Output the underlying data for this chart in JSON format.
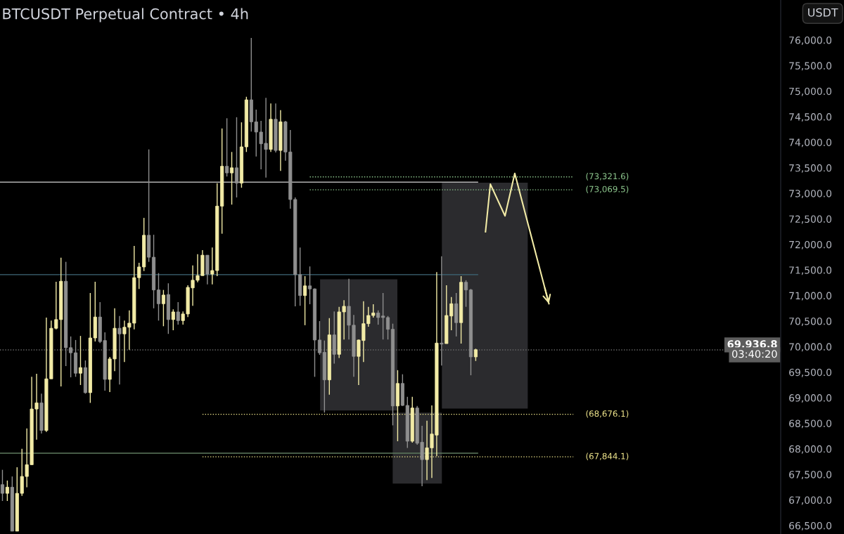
{
  "chart_data": {
    "type": "candlestick",
    "title": "BTCUSDT Perpetual Contract • 4h",
    "ylabel": "USDT",
    "categories": [
      null,
      null,
      null,
      null,
      null,
      null,
      null,
      null,
      null,
      null,
      null,
      null,
      null,
      null,
      null,
      null,
      null,
      null,
      null,
      null,
      null,
      null,
      null,
      null,
      null,
      null,
      null,
      null,
      null,
      null,
      null,
      null,
      null,
      null,
      null,
      null,
      null,
      null,
      null,
      null,
      null,
      null,
      null,
      null,
      null,
      null,
      null,
      null,
      null,
      null,
      null,
      null,
      null,
      null,
      null,
      null,
      null,
      null,
      null,
      null,
      null,
      null,
      null,
      null,
      null,
      null,
      null,
      null,
      null,
      null,
      null,
      null,
      null,
      null,
      null,
      null,
      null,
      null,
      null,
      null,
      null,
      null,
      null,
      null,
      null,
      null,
      null,
      null,
      null,
      null,
      null,
      null,
      null,
      null,
      null,
      null,
      null,
      null,
      null,
      null,
      null,
      null,
      null,
      null,
      null,
      null,
      null,
      null,
      null,
      null,
      null,
      null,
      null,
      null,
      null,
      null,
      null,
      null,
      null,
      null,
      null,
      null,
      null,
      null,
      null,
      null,
      null,
      null,
      null,
      null,
      null,
      null,
      null,
      null,
      null,
      null,
      null,
      null,
      null,
      null,
      null,
      null,
      null,
      null,
      null,
      null,
      null,
      null,
      null,
      null,
      null,
      null,
      null,
      null,
      null,
      null,
      null,
      null,
      null,
      null
    ],
    "ohlc": [
      [
        67300,
        67590,
        66980,
        67130
      ],
      [
        67130,
        67380,
        66980,
        67250
      ],
      [
        67250,
        67460,
        66390,
        66390
      ],
      [
        66390,
        67640,
        66390,
        67130
      ],
      [
        67130,
        68000,
        67080,
        67460
      ],
      [
        67460,
        68400,
        67250,
        67690
      ],
      [
        67690,
        69410,
        67690,
        68780
      ],
      [
        68780,
        69470,
        68180,
        68900
      ],
      [
        68900,
        69080,
        68300,
        68360
      ],
      [
        68360,
        70570,
        68330,
        69370
      ],
      [
        69370,
        70510,
        69370,
        70360
      ],
      [
        70360,
        71270,
        70340,
        70530
      ],
      [
        70530,
        71740,
        69220,
        71280
      ],
      [
        71280,
        71660,
        69620,
        69980
      ],
      [
        69980,
        70200,
        69400,
        69880
      ],
      [
        69880,
        70130,
        69410,
        69480
      ],
      [
        69480,
        70210,
        69250,
        69590
      ],
      [
        69590,
        69730,
        69080,
        69100
      ],
      [
        69100,
        71050,
        68900,
        70170
      ],
      [
        70170,
        71270,
        70100,
        70580
      ],
      [
        70580,
        70870,
        70070,
        70100
      ],
      [
        70120,
        70280,
        69140,
        69360
      ],
      [
        69360,
        69800,
        69110,
        69760
      ],
      [
        69760,
        70750,
        69520,
        70360
      ],
      [
        70360,
        70600,
        69260,
        70250
      ],
      [
        70250,
        70510,
        69700,
        70380
      ],
      [
        70380,
        70710,
        69940,
        70460
      ],
      [
        70460,
        71970,
        70340,
        71350
      ],
      [
        71350,
        71640,
        71130,
        71560
      ],
      [
        71560,
        72520,
        71480,
        72180
      ],
      [
        72180,
        73860,
        71660,
        71750
      ],
      [
        71750,
        72190,
        70750,
        71110
      ],
      [
        71110,
        71440,
        70510,
        70840
      ],
      [
        70840,
        71110,
        70400,
        71010
      ],
      [
        71020,
        71240,
        70250,
        70530
      ],
      [
        70530,
        70730,
        70320,
        70680
      ],
      [
        70680,
        70870,
        70430,
        70510
      ],
      [
        70510,
        70690,
        70430,
        70640
      ],
      [
        70640,
        71200,
        70580,
        71160
      ],
      [
        71150,
        71590,
        70800,
        71300
      ],
      [
        71300,
        71810,
        71260,
        71390
      ],
      [
        71390,
        71890,
        71390,
        71790
      ],
      [
        71790,
        71790,
        71220,
        71420
      ],
      [
        71420,
        71940,
        71220,
        71490
      ],
      [
        71490,
        73200,
        71380,
        72750
      ],
      [
        72750,
        74270,
        72210,
        73530
      ],
      [
        73530,
        74470,
        73330,
        73400
      ],
      [
        73400,
        73810,
        72780,
        73500
      ],
      [
        73500,
        74490,
        72920,
        73200
      ],
      [
        73200,
        74390,
        73110,
        73910
      ],
      [
        73910,
        74890,
        73810,
        74830
      ],
      [
        74830,
        76040,
        74210,
        74400
      ],
      [
        74400,
        74640,
        73720,
        74200
      ],
      [
        74200,
        74420,
        73470,
        73970
      ],
      [
        73980,
        74870,
        73310,
        73860
      ],
      [
        73860,
        74760,
        73810,
        74450
      ],
      [
        74450,
        74760,
        73800,
        73840
      ],
      [
        73840,
        74630,
        73440,
        74400
      ],
      [
        74400,
        74420,
        73640,
        73810
      ],
      [
        73810,
        74240,
        72700,
        72880
      ],
      [
        72880,
        72920,
        70790,
        71410
      ],
      [
        71410,
        71940,
        70800,
        71000
      ],
      [
        71000,
        71380,
        70420,
        71190
      ],
      [
        71190,
        71570,
        70830,
        71130
      ],
      [
        71130,
        71140,
        69410,
        70130
      ],
      [
        70130,
        70500,
        69840,
        69880
      ],
      [
        69890,
        70120,
        68710,
        69350
      ],
      [
        69350,
        70560,
        69060,
        70230
      ],
      [
        70230,
        70690,
        69670,
        69850
      ],
      [
        69850,
        70780,
        69780,
        70680
      ],
      [
        70680,
        70910,
        70140,
        70790
      ],
      [
        70790,
        71330,
        70140,
        70420
      ],
      [
        70420,
        70620,
        69410,
        69810
      ],
      [
        69810,
        70140,
        69250,
        70130
      ],
      [
        70120,
        70890,
        69700,
        70450
      ],
      [
        70450,
        70780,
        70390,
        70610
      ],
      [
        70610,
        70830,
        70570,
        70660
      ],
      [
        70660,
        70710,
        70430,
        70570
      ],
      [
        70600,
        71050,
        70140,
        70570
      ],
      [
        70570,
        70600,
        70140,
        70340
      ],
      [
        70340,
        70450,
        68460,
        68840
      ],
      [
        68840,
        69540,
        68150,
        69280
      ],
      [
        69280,
        69460,
        68840,
        68850
      ],
      [
        68850,
        69020,
        68020,
        68150
      ],
      [
        68150,
        69020,
        68120,
        68800
      ],
      [
        68800,
        68840,
        68080,
        68110
      ],
      [
        68130,
        68450,
        67270,
        67790
      ],
      [
        67790,
        68550,
        67390,
        68020
      ],
      [
        68020,
        68850,
        67430,
        68290
      ],
      [
        68270,
        71460,
        67860,
        70070
      ],
      [
        70070,
        71770,
        69630,
        70050
      ],
      [
        70060,
        71200,
        70060,
        70610
      ],
      [
        70600,
        70970,
        70320,
        70840
      ],
      [
        70840,
        71050,
        70200,
        70470
      ],
      [
        70470,
        71380,
        70060,
        71260
      ],
      [
        71260,
        71300,
        70780,
        71110
      ],
      [
        71110,
        71130,
        69440,
        69800
      ],
      [
        69800,
        69960,
        69720,
        69940
      ],
      null,
      null,
      null,
      null,
      null,
      null,
      null,
      null,
      null,
      null,
      null,
      null,
      null,
      null,
      null,
      null,
      null,
      null,
      null,
      null,
      null,
      null,
      null,
      null,
      null,
      null,
      null,
      null,
      null,
      null,
      null,
      null,
      null,
      null,
      null,
      null,
      null,
      null,
      null,
      null,
      null,
      null,
      null,
      null,
      null,
      null,
      null,
      null,
      null,
      null,
      null,
      null,
      null,
      null,
      null,
      null,
      null,
      null,
      null,
      null,
      null,
      null
    ],
    "colors": [
      "#8f8f8f",
      "#f2eba6",
      "#8f8f8f",
      "#f2eba6",
      "#f2eba6",
      "#f2eba6",
      "#f2eba6",
      "#f2eba6",
      "#8f8f8f",
      "#f2eba6",
      "#f2eba6",
      "#f2eba6",
      "#f2eba6",
      "#8f8f8f",
      "#8f8f8f",
      "#8f8f8f",
      "#f2eba6",
      "#8f8f8f",
      "#f2eba6",
      "#f2eba6",
      "#8f8f8f",
      "#8f8f8f",
      "#f2eba6",
      "#f2eba6",
      "#8f8f8f",
      "#f2eba6",
      "#f2eba6",
      "#f2eba6",
      "#f2eba6",
      "#f2eba6",
      "#8f8f8f",
      "#8f8f8f",
      "#8f8f8f",
      "#f2eba6",
      "#8f8f8f",
      "#f2eba6",
      "#8f8f8f",
      "#f2eba6",
      "#f2eba6",
      "#f2eba6",
      "#f2eba6",
      "#f2eba6",
      "#8f8f8f",
      "#f2eba6",
      "#f2eba6",
      "#f2eba6",
      "#8f8f8f",
      "#f2eba6",
      "#8f8f8f",
      "#f2eba6",
      "#f2eba6",
      "#8f8f8f",
      "#8f8f8f",
      "#8f8f8f",
      "#8f8f8f",
      "#f2eba6",
      "#8f8f8f",
      "#f2eba6",
      "#8f8f8f",
      "#8f8f8f",
      "#8f8f8f",
      "#8f8f8f",
      "#f2eba6",
      "#8f8f8f",
      "#8f8f8f",
      "#8f8f8f",
      "#8f8f8f",
      "#f2eba6",
      "#8f8f8f",
      "#f2eba6",
      "#f2eba6",
      "#8f8f8f",
      "#8f8f8f",
      "#f2eba6",
      "#f2eba6",
      "#f2eba6",
      "#f2eba6",
      "#8f8f8f",
      "#8f8f8f",
      "#8f8f8f",
      "#8f8f8f",
      "#f2eba6",
      "#8f8f8f",
      "#8f8f8f",
      "#f2eba6",
      "#8f8f8f",
      "#8f8f8f",
      "#f2eba6",
      "#f2eba6",
      "#f2eba6",
      "#8f8f8f",
      "#f2eba6",
      "#f2eba6",
      "#8f8f8f",
      "#f2eba6",
      "#8f8f8f",
      "#8f8f8f",
      "#f2eba6",
      null,
      null,
      null,
      null,
      null,
      null,
      null,
      null,
      null,
      null,
      null,
      null,
      null,
      null,
      null,
      null,
      null,
      null,
      null,
      null,
      null,
      null,
      null,
      null,
      null,
      null,
      null,
      null,
      null,
      null,
      null,
      null,
      null,
      null,
      null,
      null,
      null,
      null,
      null,
      null,
      null,
      null,
      null,
      null,
      null,
      null,
      null,
      null,
      null,
      null,
      null,
      null,
      null,
      null,
      null,
      null,
      null,
      null,
      null,
      null,
      null,
      null
    ],
    "series": [
      {
        "type": "line",
        "color": "#f2eba6",
        "values": [
          null,
          null,
          null,
          null,
          null,
          null,
          null,
          null,
          null,
          null,
          null,
          null,
          null,
          null,
          null,
          null,
          null,
          null,
          null,
          null,
          null,
          null,
          null,
          null,
          null,
          null,
          null,
          null,
          null,
          null,
          null,
          null,
          null,
          null,
          null,
          null,
          null,
          null,
          null,
          null,
          null,
          null,
          null,
          null,
          null,
          null,
          null,
          null,
          null,
          null,
          null,
          null,
          null,
          null,
          null,
          null,
          null,
          null,
          null,
          null,
          null,
          null,
          null,
          null,
          null,
          null,
          null,
          null,
          null,
          null,
          null,
          null,
          null,
          null,
          null,
          null,
          null,
          null,
          null,
          null,
          null,
          null,
          null,
          null,
          null,
          null,
          null,
          null,
          null,
          null,
          null,
          null,
          null,
          null,
          null,
          null,
          null,
          null,
          null,
          72250,
          73180,
          null,
          null,
          72560,
          null,
          73390,
          null,
          null,
          null,
          null,
          null,
          null,
          70840,
          null,
          null,
          null,
          null,
          null,
          null,
          null,
          null,
          null,
          null,
          null,
          null,
          null,
          null,
          null,
          null,
          null,
          null,
          null,
          null,
          null,
          null,
          null,
          null,
          null,
          null,
          null,
          null,
          null,
          null,
          null,
          null,
          null,
          null,
          null,
          null,
          null,
          null,
          null,
          null,
          null,
          null,
          null,
          null,
          null,
          null,
          null
        ]
      }
    ],
    "bands": [
      {
        "axis": "y",
        "from": 68750,
        "to": 71320,
        "color": "#2b2b2e"
      },
      {
        "axis": "y",
        "from": 67320,
        "to": 68710,
        "color": "#2b2b2e"
      },
      {
        "axis": "y",
        "from": 68790,
        "to": 73210,
        "color": "#2b2b2e"
      }
    ],
    "ref_lines": [
      {
        "axis": "y",
        "value": 71410,
        "color": "#3f6878",
        "line_style": "solid"
      },
      {
        "axis": "y",
        "value": 67915,
        "color": "#5e7a5e",
        "line_style": "solid"
      },
      {
        "axis": "y",
        "value": 73220,
        "color": "#b0b0b0",
        "line_style": "solid"
      },
      {
        "axis": "y",
        "value": 73321.6,
        "label": "(73,321.6)",
        "color": "#8fc98f",
        "line_style": "dotted"
      },
      {
        "axis": "y",
        "value": 73069.5,
        "label": "(73,069.5)",
        "color": "#8fc98f",
        "line_style": "dotted"
      },
      {
        "axis": "y",
        "value": 68676.1,
        "label": "(68,676.1)",
        "color": "#f0e68c",
        "line_style": "dotted"
      },
      {
        "axis": "y",
        "value": 67844.1,
        "label": "(67,844.1)",
        "color": "#f0e68c",
        "line_style": "dotted"
      },
      {
        "axis": "y",
        "value": 69936.8,
        "label": "69,936.8",
        "color": "#6b6b6b",
        "line_style": "dotted"
      }
    ],
    "annotations": [
      "03:40:20"
    ],
    "ylim": [
      66334,
      76784
    ],
    "yticks": [
      {
        "value": 66500,
        "label": "66,500.0"
      },
      {
        "value": 67000,
        "label": "67,000.0"
      },
      {
        "value": 67500,
        "label": "67,500.0"
      },
      {
        "value": 68000,
        "label": "68,000.0"
      },
      {
        "value": 68500,
        "label": "68,500.0"
      },
      {
        "value": 69000,
        "label": "69,000.0"
      },
      {
        "value": 69500,
        "label": "69,500.0"
      },
      {
        "value": 70000,
        "label": "70,000.0"
      },
      {
        "value": 70500,
        "label": "70,500.0"
      },
      {
        "value": 71000,
        "label": "71,000.0"
      },
      {
        "value": 71500,
        "label": "71,500.0"
      },
      {
        "value": 72000,
        "label": "72,000.0"
      },
      {
        "value": 72500,
        "label": "72,500.0"
      },
      {
        "value": 73000,
        "label": "73,000.0"
      },
      {
        "value": 73500,
        "label": "73,500.0"
      },
      {
        "value": 74000,
        "label": "74,000.0"
      },
      {
        "value": 74500,
        "label": "74,500.0"
      },
      {
        "value": 75000,
        "label": "75,000.0"
      },
      {
        "value": 75500,
        "label": "75,500.0"
      },
      {
        "value": 76000,
        "label": "76,000.0"
      }
    ],
    "tick_labels": "y",
    "grid": false,
    "legend": false
  }
}
